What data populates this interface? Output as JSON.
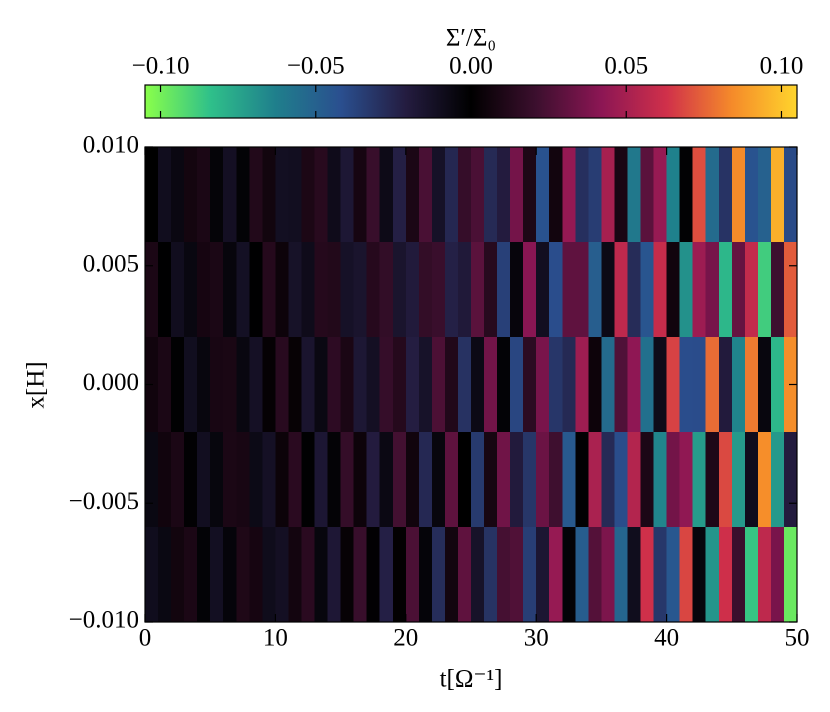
{
  "chart_data": {
    "type": "heatmap",
    "colorbar_label": "Σ′/Σ₀",
    "xlabel": "t[Ω⁻¹]",
    "ylabel": "x[H]",
    "xlim": [
      0,
      50
    ],
    "xticks": [
      0,
      10,
      20,
      30,
      40,
      50
    ],
    "ylim": [
      -0.01,
      0.01
    ],
    "yticks": [
      {
        "value": 0.01,
        "label": "0.010"
      },
      {
        "value": 0.005,
        "label": "0.005"
      },
      {
        "value": 0,
        "label": "0.000"
      },
      {
        "value": -0.005,
        "label": "−0.005"
      },
      {
        "value": -0.01,
        "label": "−0.010"
      }
    ],
    "zlim": [
      -0.105,
      0.105
    ],
    "zticks": [
      {
        "value": -0.1,
        "label": "−0.10"
      },
      {
        "value": -0.05,
        "label": "−0.05"
      },
      {
        "value": 0,
        "label": "0.00"
      },
      {
        "value": 0.05,
        "label": "0.05"
      },
      {
        "value": 0.1,
        "label": "0.10"
      }
    ],
    "colormap": [
      "#8aff4a",
      "#2fc08a",
      "#1f7f8c",
      "#2a4f8f",
      "#241c40",
      "#000000",
      "#3c0f2e",
      "#8c1654",
      "#d0304a",
      "#f58a2a",
      "#ffd52c"
    ],
    "x": [
      0.5,
      1.5,
      2.5,
      3.5,
      4.5,
      5.5,
      6.5,
      7.5,
      8.5,
      9.5,
      10.5,
      11.5,
      12.5,
      13.5,
      14.5,
      15.5,
      16.5,
      17.5,
      18.5,
      19.5,
      20.5,
      21.5,
      22.5,
      23.5,
      24.5,
      25.5,
      26.5,
      27.5,
      28.5,
      29.5,
      30.5,
      31.5,
      32.5,
      33.5,
      34.5,
      35.5,
      36.5,
      37.5,
      38.5,
      39.5,
      40.5,
      41.5,
      42.5,
      43.5,
      44.5,
      45.5,
      46.5,
      47.5,
      48.5,
      49.5
    ],
    "y": [
      0.008,
      0.004,
      0,
      -0.004,
      -0.008
    ],
    "z": [
      [
        0,
        -0.0097,
        -0.0056,
        0.007,
        0.0094,
        -0.0027,
        -0.0115,
        -0.0019,
        0.0119,
        0.0064,
        -0.0112,
        -0.0105,
        0.0098,
        0.0139,
        -0.0085,
        -0.0169,
        0.0077,
        0.0196,
        -0.0076,
        -0.0221,
        0.0094,
        0.0243,
        -0.0128,
        -0.0256,
        0.0186,
        0.0248,
        -0.0267,
        -0.0203,
        0.0358,
        0.01,
        -0.0434,
        0.0064,
        0.0448,
        -0.0289,
        -0.0346,
        0.0502,
        0.009,
        -0.0599,
        0.0288,
        0.0451,
        -0.0635,
        -0.0012,
        0.0701,
        -0.0543,
        -0.0305,
        0.0843,
        -0.0439,
        -0.0497,
        0.0943,
        -0.04
      ],
      [
        0.0095,
        -0.0002,
        -0.0099,
        -0.0052,
        0.0077,
        0.0094,
        -0.0039,
        -0.0119,
        -0.0002,
        0.013,
        0.0046,
        -0.0132,
        -0.0085,
        0.0129,
        0.012,
        -0.0127,
        -0.0149,
        0.0132,
        0.0176,
        -0.0149,
        -0.0192,
        0.0178,
        0.0199,
        -0.0226,
        -0.0186,
        0.0289,
        0.0138,
        -0.0359,
        -0.0041,
        0.0412,
        -0.0105,
        -0.0411,
        0.0302,
        0.0303,
        -0.0486,
        -0.0068,
        0.0573,
        -0.0275,
        -0.0448,
        0.06,
        0.006,
        -0.0688,
        0.0472,
        0.0366,
        -0.0811,
        0.0317,
        0.0587,
        -0.0881,
        0.0213,
        0.073
      ],
      [
        0.0059,
        0.0096,
        -0.0005,
        -0.0102,
        -0.0047,
        0.0085,
        0.0091,
        -0.0054,
        -0.012,
        0.0016,
        0.014,
        0.0023,
        -0.0151,
        -0.0059,
        0.0159,
        0.009,
        -0.017,
        -0.0114,
        0.0185,
        0.0129,
        -0.0213,
        -0.0133,
        0.0251,
        0.0117,
        -0.0301,
        -0.0069,
        0.0352,
        -0.0019,
        -0.0383,
        0.0155,
        0.0369,
        -0.0318,
        -0.0262,
        0.0477,
        0.0046,
        -0.0544,
        0.0263,
        0.0428,
        -0.0565,
        -0.0081,
        0.0672,
        -0.0413,
        -0.0409,
        0.0769,
        -0.0197,
        -0.0647,
        0.0802,
        -0.0047,
        -0.0812,
        0.085
      ],
      [
        -0.0059,
        0.0061,
        0.0095,
        -0.0011,
        -0.0106,
        -0.0042,
        0.0095,
        0.0085,
        -0.0072,
        -0.012,
        0.0041,
        0.0146,
        -0.0008,
        -0.0166,
        -0.0021,
        0.0183,
        0.0045,
        -0.0203,
        -0.0062,
        0.0229,
        0.0061,
        -0.026,
        -0.0044,
        0.0298,
        0,
        -0.0332,
        0.0079,
        0.0347,
        -0.0196,
        -0.0316,
        0.0333,
        0.0214,
        -0.0464,
        -0.0009,
        0.0514,
        -0.0269,
        -0.041,
        0.054,
        0.0099,
        -0.065,
        0.0355,
        0.0433,
        -0.0725,
        0.0109,
        0.0689,
        -0.0717,
        -0.0092,
        0.0852,
        -0.0715,
        -0.0204
      ],
      [
        -0.0095,
        -0.0058,
        0.0064,
        0.0095,
        -0.0019,
        -0.0111,
        -0.0032,
        0.0107,
        0.0076,
        -0.009,
        -0.0115,
        0.0067,
        0.0146,
        -0.0043,
        -0.0173,
        0.0023,
        0.0197,
        -0.0011,
        -0.0223,
        0.001,
        0.025,
        -0.0028,
        -0.0279,
        0.0067,
        0.0301,
        -0.0136,
        -0.0303,
        0.0234,
        0.0262,
        -0.035,
        -0.0163,
        0.045,
        -0.0025,
        -0.0482,
        0.0272,
        0.0378,
        -0.0517,
        -0.0095,
        0.0626,
        -0.0321,
        -0.0453,
        0.0681,
        -0.0039,
        -0.0702,
        0.0623,
        0.0204,
        -0.0859,
        0.0574,
        0.037,
        -0.0977
      ]
    ]
  }
}
